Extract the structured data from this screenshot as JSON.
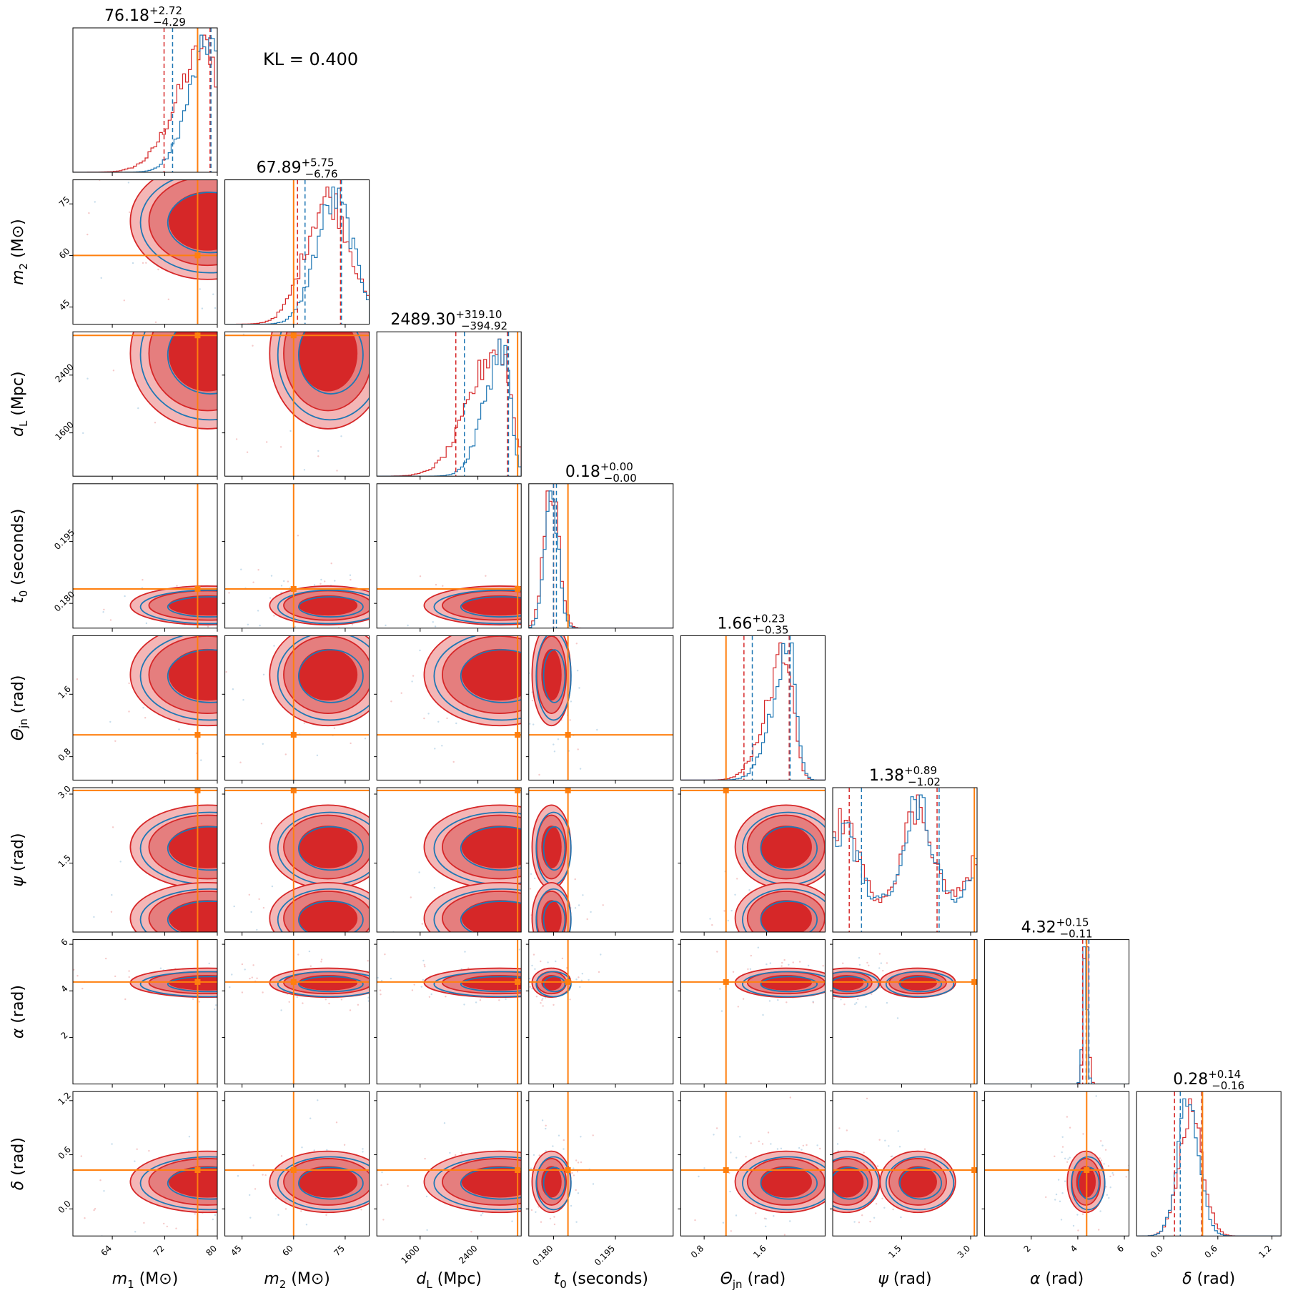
{
  "kl_text": "KL = 0.400",
  "colors": {
    "posterior_a": "#1f77b4",
    "posterior_b": "#d62728",
    "truth": "#ff7f0e"
  },
  "chart_data": {
    "type": "corner",
    "params": [
      {
        "name": "m1",
        "label_main": "m",
        "label_sub": "1",
        "label_unit": "(M⊙)",
        "range": [
          58,
          80
        ],
        "truth": 77,
        "median": 76.18,
        "plus": "+2.72",
        "minus": "−4.29",
        "title_val": "76.18",
        "ticks": [
          64,
          72,
          80
        ],
        "ticklabels": [
          "64",
          "72",
          "80"
        ],
        "peak": 78.5,
        "spread": 4.5,
        "skew": -1,
        "blue_peak": 79,
        "blue_spread": 3.2,
        "bimodal": false
      },
      {
        "name": "m2",
        "label_main": "m",
        "label_sub": "2",
        "label_unit": "(M⊙)",
        "range": [
          40,
          82
        ],
        "truth": 60,
        "median": 67.89,
        "plus": "+5.75",
        "minus": "−6.76",
        "title_val": "67.89",
        "ticks": [
          45,
          60,
          75
        ],
        "ticklabels": [
          "45",
          "60",
          "75"
        ],
        "peak": 70,
        "spread": 6.5,
        "skew": 0,
        "blue_peak": 72,
        "blue_spread": 5.5,
        "bimodal": false
      },
      {
        "name": "dL",
        "label_main": "d",
        "label_sub": "L",
        "label_unit": "(Mpc)",
        "range": [
          1000,
          3000
        ],
        "truth": 2950,
        "median": 2489.3,
        "plus": "+319.10",
        "minus": "−394.92",
        "title_val": "2489.30",
        "ticks": [
          1600,
          2400
        ],
        "ticklabels": [
          "1600",
          "2400"
        ],
        "peak": 2700,
        "spread": 400,
        "skew": -1,
        "blue_peak": 2750,
        "blue_spread": 250,
        "bimodal": false
      },
      {
        "name": "t0",
        "label_main": "t",
        "label_sub": "0",
        "label_unit": "(seconds)",
        "range": [
          0.174,
          0.209
        ],
        "truth": 0.1835,
        "median": 0.18,
        "plus": "+0.00",
        "minus": "−0.00",
        "title_val": "0.18",
        "ticks": [
          0.18,
          0.195
        ],
        "ticklabels": [
          "0.180",
          "0.195"
        ],
        "peak": 0.1795,
        "spread": 0.0018,
        "skew": 0,
        "blue_peak": 0.1795,
        "blue_spread": 0.0016,
        "bimodal": false
      },
      {
        "name": "theta_jn",
        "label_main": "Θ",
        "label_sub": "jn",
        "label_unit": "(rad)",
        "range": [
          0.5,
          2.35
        ],
        "truth": 1.08,
        "median": 1.66,
        "plus": "+0.23",
        "minus": "−0.35",
        "title_val": "1.66",
        "ticks": [
          0.8,
          1.6
        ],
        "ticklabels": [
          "0.8",
          "1.6"
        ],
        "peak": 1.85,
        "spread": 0.25,
        "skew": -1,
        "blue_peak": 1.9,
        "blue_spread": 0.22,
        "bimodal": false
      },
      {
        "name": "psi",
        "label_main": "ψ",
        "label_sub": "",
        "label_unit": "(rad)",
        "range": [
          0.0,
          3.14
        ],
        "truth": 3.08,
        "median": 1.38,
        "plus": "+0.89",
        "minus": "−1.02",
        "title_val": "1.38",
        "ticks": [
          1.5,
          3.0
        ],
        "ticklabels": [
          "1.5",
          "3.0"
        ],
        "peak": 0.3,
        "spread": 0.3,
        "skew": 0,
        "blue_peak": 0.3,
        "blue_spread": 0.25,
        "bimodal": true
      },
      {
        "name": "alpha",
        "label_main": "α",
        "label_sub": "",
        "label_unit": "(rad)",
        "range": [
          0.0,
          6.2
        ],
        "truth": 4.38,
        "median": 4.32,
        "plus": "+0.15",
        "minus": "−0.11",
        "title_val": "4.32",
        "ticks": [
          2,
          4,
          6
        ],
        "ticklabels": [
          "2",
          "4",
          "6"
        ],
        "peak": 4.35,
        "spread": 0.1,
        "skew": 0,
        "blue_peak": 4.3,
        "blue_spread": 0.09,
        "bimodal": false
      },
      {
        "name": "delta",
        "label_main": "δ",
        "label_sub": "",
        "label_unit": "(rad)",
        "range": [
          -0.3,
          1.3
        ],
        "truth": 0.43,
        "median": 0.28,
        "plus": "+0.14",
        "minus": "−0.16",
        "title_val": "0.28",
        "ticks": [
          0.0,
          0.6,
          1.2
        ],
        "ticklabels": [
          "0.0",
          "0.6",
          "1.2"
        ],
        "peak": 0.3,
        "spread": 0.13,
        "skew": 0,
        "blue_peak": 0.28,
        "blue_spread": 0.12,
        "bimodal": false
      }
    ]
  }
}
